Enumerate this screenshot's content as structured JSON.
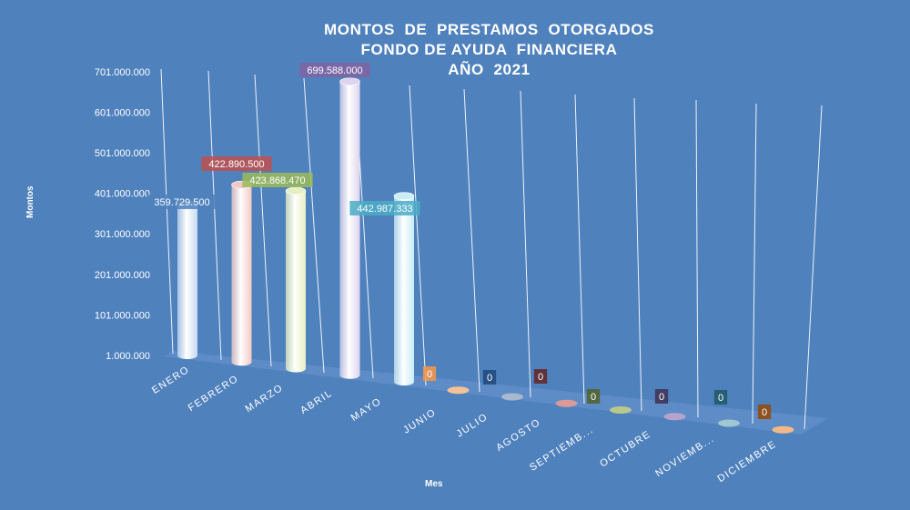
{
  "chart_data": {
    "type": "bar",
    "title_lines": [
      "MONTOS  DE  PRESTAMOS  OTORGADOS",
      "FONDO DE AYUDA  FINANCIERA",
      "AÑO  2021"
    ],
    "xlabel": "Mes",
    "ylabel": "Montos",
    "categories": [
      "ENERO",
      "FEBRERO",
      "MARZO",
      "ABRIL",
      "MAYO",
      "JUNIO",
      "JULIO",
      "AGOSTO",
      "SEPTIEMB...",
      "OCTUBRE",
      "NOVIEMB...",
      "DICIEMBRE"
    ],
    "values": [
      359729500,
      422890500,
      423868470,
      699588000,
      442987333,
      0,
      0,
      0,
      0,
      0,
      0,
      0
    ],
    "data_labels": [
      "359.729.500",
      "422.890.500",
      "423.868.470",
      "699.588.000",
      "442.987.333",
      "0",
      "0",
      "0",
      "0",
      "0",
      "0",
      "0"
    ],
    "y_ticks": [
      "1.000.000",
      "101.000.000",
      "201.000.000",
      "301.000.000",
      "401.000.000",
      "501.000.000",
      "601.000.000",
      "701.000.000"
    ],
    "ylim": [
      1000000,
      701000000
    ],
    "bar_colors": [
      "#c6d9f1",
      "#f2c8c4",
      "#e6efc0",
      "#ddd3ec",
      "#c9ecf5",
      "#f7c197",
      "#a7b8cf",
      "#d99a98",
      "#b9c98a",
      "#b6a3cd",
      "#9fc6d1",
      "#f3b887"
    ],
    "label_colors": [
      "#4f81bd",
      "#c0504d",
      "#9bbb59",
      "#8064a2",
      "#4bacc6",
      "#f79646",
      "#1f497d",
      "#632423",
      "#4f6228",
      "#3f3151",
      "#205867",
      "#974806"
    ],
    "legend": "none",
    "grid": true
  }
}
